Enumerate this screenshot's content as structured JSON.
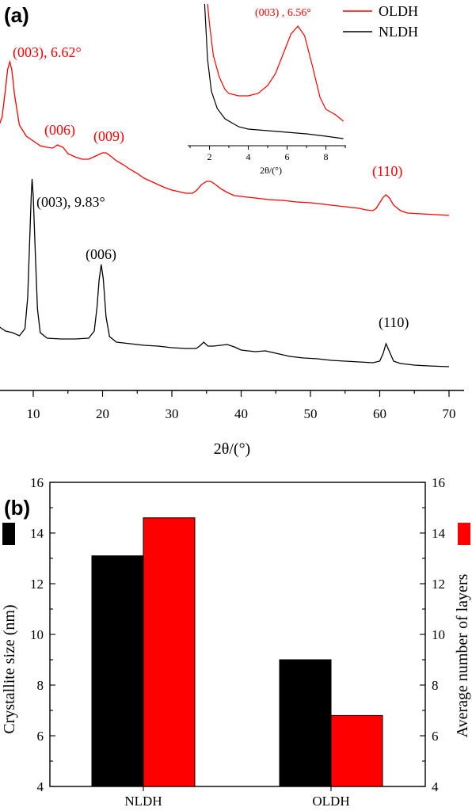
{
  "chart_data": [
    {
      "panel": "(a)",
      "type": "line",
      "xlabel": "2θ/(°)",
      "ylabel": "",
      "xlim": [
        5,
        70
      ],
      "xticks": [
        10,
        20,
        30,
        40,
        50,
        60,
        70
      ],
      "grid": false,
      "legend": {
        "placement": "top-right",
        "entries": [
          {
            "name": "OLDH",
            "color": "#ff0000"
          },
          {
            "name": "NLDH",
            "color": "#000000"
          }
        ]
      },
      "series": [
        {
          "name": "OLDH",
          "color": "#ff0000",
          "points": [
            [
              5,
              160
            ],
            [
              5.5,
              148
            ],
            [
              6,
              112
            ],
            [
              6.3,
              88
            ],
            [
              6.62,
              78
            ],
            [
              6.9,
              88
            ],
            [
              7.3,
              120
            ],
            [
              8,
              158
            ],
            [
              9,
              172
            ],
            [
              10,
              178
            ],
            [
              11,
              184
            ],
            [
              12,
              186
            ],
            [
              12.8,
              187
            ],
            [
              13.5,
              183
            ],
            [
              14.3,
              186
            ],
            [
              15,
              194
            ],
            [
              16,
              198
            ],
            [
              17,
              201
            ],
            [
              18,
              201
            ],
            [
              19,
              197
            ],
            [
              20,
              193
            ],
            [
              20.5,
              193
            ],
            [
              21,
              196
            ],
            [
              22,
              203
            ],
            [
              23,
              208
            ],
            [
              24,
              214
            ],
            [
              25,
              219
            ],
            [
              26,
              225
            ],
            [
              27,
              229
            ],
            [
              28,
              233
            ],
            [
              29,
              237
            ],
            [
              30,
              240
            ],
            [
              31,
              242
            ],
            [
              32,
              244
            ],
            [
              33,
              244
            ],
            [
              33.6,
              240
            ],
            [
              34.3,
              233
            ],
            [
              35,
              229
            ],
            [
              35.6,
              229
            ],
            [
              36.3,
              233
            ],
            [
              37,
              238
            ],
            [
              38,
              243
            ],
            [
              39,
              247
            ],
            [
              40,
              248
            ],
            [
              42,
              250
            ],
            [
              44,
              252
            ],
            [
              46,
              253
            ],
            [
              48,
              255
            ],
            [
              50,
              256
            ],
            [
              52,
              258
            ],
            [
              54,
              260
            ],
            [
              56,
              262
            ],
            [
              57,
              263
            ],
            [
              58,
              265
            ],
            [
              59,
              266
            ],
            [
              59.5,
              263
            ],
            [
              60,
              256
            ],
            [
              60.5,
              249
            ],
            [
              60.9,
              246
            ],
            [
              61.4,
              250
            ],
            [
              62,
              259
            ],
            [
              63,
              266
            ],
            [
              64,
              269
            ],
            [
              66,
              270
            ],
            [
              68,
              271
            ],
            [
              70,
              272
            ]
          ]
        },
        {
          "name": "NLDH",
          "color": "#000000",
          "points": [
            [
              5,
              412
            ],
            [
              6,
              418
            ],
            [
              7,
              420
            ],
            [
              8,
              424
            ],
            [
              8.8,
              415
            ],
            [
              9.2,
              375
            ],
            [
              9.5,
              300
            ],
            [
              9.7,
              248
            ],
            [
              9.83,
              226
            ],
            [
              10,
              248
            ],
            [
              10.3,
              320
            ],
            [
              10.6,
              390
            ],
            [
              11,
              420
            ],
            [
              12,
              427
            ],
            [
              14,
              428
            ],
            [
              16,
              428
            ],
            [
              18,
              427
            ],
            [
              18.8,
              418
            ],
            [
              19.2,
              388
            ],
            [
              19.5,
              354
            ],
            [
              19.8,
              334
            ],
            [
              20.1,
              352
            ],
            [
              20.5,
              400
            ],
            [
              21,
              425
            ],
            [
              22,
              432
            ],
            [
              24,
              434
            ],
            [
              26,
              436
            ],
            [
              28,
              437
            ],
            [
              30,
              439
            ],
            [
              32,
              440
            ],
            [
              33.5,
              440
            ],
            [
              34,
              437
            ],
            [
              34.6,
              432
            ],
            [
              35.2,
              437
            ],
            [
              36,
              437
            ],
            [
              37,
              436
            ],
            [
              38,
              435
            ],
            [
              39,
              438
            ],
            [
              40,
              442
            ],
            [
              42,
              444
            ],
            [
              43.5,
              443
            ],
            [
              45,
              446
            ],
            [
              47,
              450
            ],
            [
              49,
              452
            ],
            [
              51,
              453
            ],
            [
              53,
              455
            ],
            [
              55,
              456
            ],
            [
              57,
              457
            ],
            [
              59,
              458
            ],
            [
              60,
              456
            ],
            [
              60.5,
              446
            ],
            [
              60.9,
              434
            ],
            [
              61.3,
              442
            ],
            [
              62,
              456
            ],
            [
              63,
              459
            ],
            [
              65,
              461
            ],
            [
              67,
              462
            ],
            [
              70,
              463
            ]
          ]
        }
      ],
      "annotations": [
        {
          "text": "(003), 6.62°",
          "series": "OLDH"
        },
        {
          "text": "(006)",
          "series": "OLDH"
        },
        {
          "text": "(009)",
          "series": "OLDH"
        },
        {
          "text": "(110)",
          "series": "OLDH"
        },
        {
          "text": "(003), 9.83°",
          "series": "NLDH"
        },
        {
          "text": "(006)",
          "series": "NLDH"
        },
        {
          "text": "(110)",
          "series": "NLDH"
        }
      ],
      "inset": {
        "type": "line",
        "xlabel": "2θ/(°)",
        "xlim": [
          1,
          9
        ],
        "xticks": [
          2,
          4,
          6,
          8
        ],
        "annotation": "(003) , 6.56°",
        "series": [
          {
            "name": "OLDH",
            "color": "#ff0000",
            "points": [
              [
                1.9,
                0
              ],
              [
                2.0,
                25
              ],
              [
                2.2,
                65
              ],
              [
                2.5,
                92
              ],
              [
                2.8,
                108
              ],
              [
                3.0,
                113
              ],
              [
                3.5,
                116
              ],
              [
                4.0,
                116
              ],
              [
                4.5,
                113
              ],
              [
                5.0,
                103
              ],
              [
                5.4,
                88
              ],
              [
                5.8,
                63
              ],
              [
                6.2,
                38
              ],
              [
                6.56,
                28
              ],
              [
                6.9,
                40
              ],
              [
                7.3,
                78
              ],
              [
                7.7,
                118
              ],
              [
                8.0,
                133
              ],
              [
                8.5,
                140
              ],
              [
                8.9,
                148
              ]
            ]
          },
          {
            "name": "NLDH",
            "color": "#000000",
            "points": [
              [
                1.75,
                0
              ],
              [
                1.9,
                70
              ],
              [
                2.1,
                110
              ],
              [
                2.4,
                132
              ],
              [
                2.8,
                145
              ],
              [
                3.5,
                155
              ],
              [
                4.0,
                158
              ],
              [
                5.0,
                160
              ],
              [
                6.0,
                162
              ],
              [
                7.0,
                164
              ],
              [
                8.0,
                167
              ],
              [
                8.9,
                170
              ]
            ]
          }
        ]
      }
    },
    {
      "panel": "(b)",
      "type": "bar",
      "categories": [
        "NLDH",
        "OLDH"
      ],
      "series": [
        {
          "name": "Crystallite size (nm)",
          "color": "#000000",
          "axis": "left",
          "values": [
            13.1,
            9.0
          ]
        },
        {
          "name": "Average number of layers",
          "color": "#ff0000",
          "axis": "right",
          "values": [
            14.6,
            6.8
          ]
        }
      ],
      "ylabel": "Crystallite size (nm)",
      "ylabel_right": "Average number of layers",
      "ylim": [
        4,
        16
      ],
      "yticks": [
        4,
        6,
        8,
        10,
        12,
        14,
        16
      ],
      "grid": false
    }
  ]
}
